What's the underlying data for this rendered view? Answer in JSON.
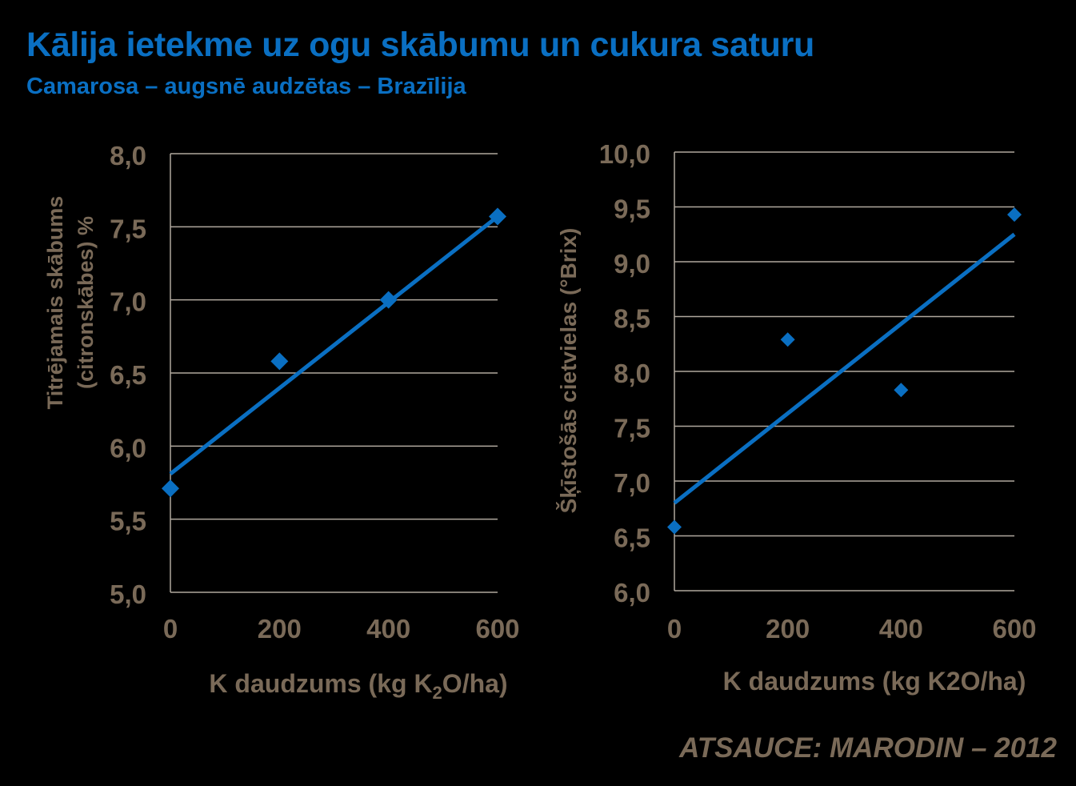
{
  "header": {
    "title": "Kālija ietekme uz ogu skābumu un cukura saturu",
    "subtitle": "Camarosa – augsnē audzētas – Brazīlija"
  },
  "source": "ATSAUCE:  MARODIN – 2012",
  "colors": {
    "background": "#000000",
    "title": "#0a6fc2",
    "series": "#0a6fc2",
    "axis_text": "#7a6a58",
    "grid": "#b0a89e"
  },
  "chart_data": [
    {
      "type": "scatter",
      "title": "",
      "xlabel": "K daudzums (kg K2O/ha)",
      "xlabel_main": "K daudzums (kg K",
      "xlabel_sub": "2",
      "xlabel_end": "O/ha)",
      "ylabel": "Titrējamais skābums (citronskābes) %",
      "ylabel_line1": "Titrējamais skābums",
      "ylabel_line2": "(citronskābes) %",
      "x": [
        0,
        200,
        400,
        600
      ],
      "values": [
        5.71,
        6.58,
        7.0,
        7.57
      ],
      "trendline": {
        "type": "linear",
        "x": [
          0,
          600
        ],
        "y": [
          5.81,
          7.57
        ]
      },
      "xlim": [
        0,
        600
      ],
      "ylim": [
        5.0,
        8.0
      ],
      "xticks": [
        "0",
        "200",
        "400",
        "600"
      ],
      "yticks": [
        "5,0",
        "5,5",
        "6,0",
        "6,5",
        "7,0",
        "7,5",
        "8,0"
      ],
      "grid": true,
      "legend": null
    },
    {
      "type": "scatter",
      "title": "",
      "xlabel": "K daudzums (kg K2O/ha)",
      "ylabel": "Šķīstošās cietvielas (°Brix)",
      "x": [
        0,
        200,
        400,
        600
      ],
      "values": [
        6.58,
        8.29,
        7.83,
        9.43
      ],
      "trendline": {
        "type": "linear",
        "x": [
          0,
          600
        ],
        "y": [
          6.8,
          9.25
        ]
      },
      "xlim": [
        0,
        600
      ],
      "ylim": [
        6.0,
        10.0
      ],
      "xticks": [
        "0",
        "200",
        "400",
        "600"
      ],
      "yticks": [
        "6,0",
        "6,5",
        "7,0",
        "7,5",
        "8,0",
        "8,5",
        "9,0",
        "9,5",
        "10,0"
      ],
      "grid": true,
      "legend": null
    }
  ]
}
